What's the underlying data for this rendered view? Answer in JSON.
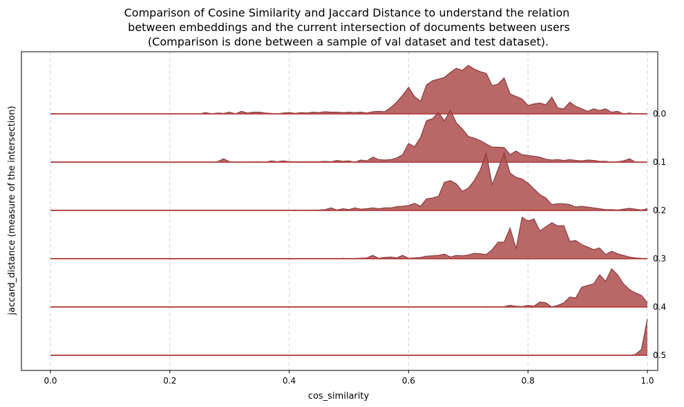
{
  "chart_data": {
    "type": "area",
    "title_lines": [
      "Comparison of Cosine Similarity and Jaccard Distance to understand the relation",
      "between embeddings and the current intersection of documents between users",
      "(Comparison is done between a sample of val dataset and test dataset)."
    ],
    "xlabel": "cos_similarity",
    "ylabel": "jaccard_distance (measure of the intersection)",
    "xlim": [
      0.0,
      1.0
    ],
    "x_ticks": [
      0.0,
      0.2,
      0.4,
      0.6,
      0.8,
      1.0
    ],
    "x_tick_labels": [
      "0.0",
      "0.2",
      "0.4",
      "0.6",
      "0.8",
      "1.0"
    ],
    "grid": "vertical dashed",
    "fill_color": "#b05252",
    "line_color": "#8b3a3a",
    "baseline_color": "#b84a4a",
    "series": [
      {
        "label": "0.0",
        "points": [
          [
            0.0,
            0
          ],
          [
            0.25,
            0
          ],
          [
            0.26,
            0.03
          ],
          [
            0.27,
            0
          ],
          [
            0.28,
            0.02
          ],
          [
            0.29,
            0.01
          ],
          [
            0.3,
            0.04
          ],
          [
            0.31,
            0
          ],
          [
            0.32,
            0.06
          ],
          [
            0.33,
            0.02
          ],
          [
            0.34,
            0.04
          ],
          [
            0.35,
            0.04
          ],
          [
            0.36,
            0.02
          ],
          [
            0.37,
            0.01
          ],
          [
            0.38,
            0
          ],
          [
            0.39,
            0.02
          ],
          [
            0.4,
            0.03
          ],
          [
            0.41,
            0.01
          ],
          [
            0.42,
            0.03
          ],
          [
            0.43,
            0.02
          ],
          [
            0.44,
            0.04
          ],
          [
            0.45,
            0.03
          ],
          [
            0.46,
            0.05
          ],
          [
            0.47,
            0.04
          ],
          [
            0.48,
            0.04
          ],
          [
            0.49,
            0.03
          ],
          [
            0.5,
            0.04
          ],
          [
            0.51,
            0.03
          ],
          [
            0.52,
            0.04
          ],
          [
            0.53,
            0.02
          ],
          [
            0.54,
            0.05
          ],
          [
            0.55,
            0.06
          ],
          [
            0.56,
            0.05
          ],
          [
            0.57,
            0.15
          ],
          [
            0.58,
            0.28
          ],
          [
            0.59,
            0.45
          ],
          [
            0.6,
            0.64
          ],
          [
            0.61,
            0.42
          ],
          [
            0.62,
            0.3
          ],
          [
            0.63,
            0.7
          ],
          [
            0.64,
            0.8
          ],
          [
            0.65,
            0.84
          ],
          [
            0.66,
            0.88
          ],
          [
            0.67,
            1.0
          ],
          [
            0.68,
            1.1
          ],
          [
            0.69,
            1.05
          ],
          [
            0.7,
            1.17
          ],
          [
            0.71,
            1.08
          ],
          [
            0.72,
            1.02
          ],
          [
            0.73,
            0.98
          ],
          [
            0.74,
            0.68
          ],
          [
            0.75,
            0.72
          ],
          [
            0.76,
            0.87
          ],
          [
            0.77,
            0.48
          ],
          [
            0.78,
            0.42
          ],
          [
            0.79,
            0.36
          ],
          [
            0.8,
            0.2
          ],
          [
            0.81,
            0.24
          ],
          [
            0.82,
            0.26
          ],
          [
            0.83,
            0.22
          ],
          [
            0.84,
            0.4
          ],
          [
            0.85,
            0.14
          ],
          [
            0.86,
            0.12
          ],
          [
            0.87,
            0.28
          ],
          [
            0.88,
            0.18
          ],
          [
            0.89,
            0.12
          ],
          [
            0.9,
            0.06
          ],
          [
            0.91,
            0.12
          ],
          [
            0.92,
            0.08
          ],
          [
            0.93,
            0.12
          ],
          [
            0.94,
            0.04
          ],
          [
            0.95,
            0.06
          ],
          [
            0.96,
            0.0
          ],
          [
            0.97,
            0.02
          ],
          [
            0.98,
            0.0
          ],
          [
            1.0,
            0
          ]
        ]
      },
      {
        "label": "0.1",
        "points": [
          [
            0.0,
            0
          ],
          [
            0.27,
            0
          ],
          [
            0.28,
            0.01
          ],
          [
            0.29,
            0.08
          ],
          [
            0.3,
            0.01
          ],
          [
            0.31,
            0
          ],
          [
            0.35,
            0.01
          ],
          [
            0.36,
            0
          ],
          [
            0.37,
            0.03
          ],
          [
            0.38,
            0.01
          ],
          [
            0.39,
            0.03
          ],
          [
            0.4,
            0.01
          ],
          [
            0.45,
            0.01
          ],
          [
            0.46,
            0.02
          ],
          [
            0.47,
            0.01
          ],
          [
            0.48,
            0.04
          ],
          [
            0.49,
            0.02
          ],
          [
            0.5,
            0.03
          ],
          [
            0.51,
            0
          ],
          [
            0.52,
            0.05
          ],
          [
            0.53,
            0.03
          ],
          [
            0.54,
            0.12
          ],
          [
            0.55,
            0.06
          ],
          [
            0.56,
            0.05
          ],
          [
            0.57,
            0.06
          ],
          [
            0.58,
            0.1
          ],
          [
            0.59,
            0.18
          ],
          [
            0.6,
            0.45
          ],
          [
            0.61,
            0.37
          ],
          [
            0.62,
            0.6
          ],
          [
            0.63,
            1.0
          ],
          [
            0.64,
            1.05
          ],
          [
            0.65,
            1.2
          ],
          [
            0.66,
            1.0
          ],
          [
            0.67,
            1.25
          ],
          [
            0.68,
            0.95
          ],
          [
            0.69,
            0.8
          ],
          [
            0.7,
            0.62
          ],
          [
            0.71,
            0.58
          ],
          [
            0.72,
            0.52
          ],
          [
            0.73,
            0.44
          ],
          [
            0.74,
            0.36
          ],
          [
            0.75,
            0.36
          ],
          [
            0.76,
            0.35
          ],
          [
            0.77,
            0.18
          ],
          [
            0.78,
            0.27
          ],
          [
            0.79,
            0.18
          ],
          [
            0.8,
            0.16
          ],
          [
            0.81,
            0.14
          ],
          [
            0.82,
            0.12
          ],
          [
            0.83,
            0.07
          ],
          [
            0.84,
            0.05
          ],
          [
            0.85,
            0.06
          ],
          [
            0.86,
            0.04
          ],
          [
            0.87,
            0.06
          ],
          [
            0.88,
            0.04
          ],
          [
            0.89,
            0.03
          ],
          [
            0.9,
            0.05
          ],
          [
            0.91,
            0.04
          ],
          [
            0.92,
            0.02
          ],
          [
            0.93,
            0.02
          ],
          [
            0.94,
            0.0
          ],
          [
            0.95,
            0.01
          ],
          [
            0.96,
            0.03
          ],
          [
            0.97,
            0.08
          ],
          [
            0.98,
            0
          ],
          [
            1.0,
            0
          ]
        ]
      },
      {
        "label": "0.2",
        "points": [
          [
            0.0,
            0
          ],
          [
            0.4,
            0
          ],
          [
            0.41,
            0.01
          ],
          [
            0.42,
            0
          ],
          [
            0.45,
            0.01
          ],
          [
            0.46,
            0.02
          ],
          [
            0.47,
            0.06
          ],
          [
            0.48,
            0.01
          ],
          [
            0.49,
            0.04
          ],
          [
            0.5,
            0.02
          ],
          [
            0.51,
            0.06
          ],
          [
            0.52,
            0.03
          ],
          [
            0.53,
            0.04
          ],
          [
            0.54,
            0.06
          ],
          [
            0.55,
            0.04
          ],
          [
            0.56,
            0.06
          ],
          [
            0.57,
            0.06
          ],
          [
            0.58,
            0.09
          ],
          [
            0.59,
            0.1
          ],
          [
            0.6,
            0.12
          ],
          [
            0.61,
            0.17
          ],
          [
            0.62,
            0.1
          ],
          [
            0.63,
            0.28
          ],
          [
            0.64,
            0.3
          ],
          [
            0.65,
            0.34
          ],
          [
            0.66,
            0.68
          ],
          [
            0.67,
            0.72
          ],
          [
            0.68,
            0.64
          ],
          [
            0.69,
            0.46
          ],
          [
            0.7,
            0.54
          ],
          [
            0.71,
            0.72
          ],
          [
            0.72,
            0.98
          ],
          [
            0.73,
            1.38
          ],
          [
            0.74,
            0.62
          ],
          [
            0.75,
            1.0
          ],
          [
            0.76,
            1.38
          ],
          [
            0.77,
            0.9
          ],
          [
            0.78,
            0.8
          ],
          [
            0.79,
            0.76
          ],
          [
            0.8,
            0.66
          ],
          [
            0.81,
            0.52
          ],
          [
            0.82,
            0.38
          ],
          [
            0.83,
            0.3
          ],
          [
            0.84,
            0.14
          ],
          [
            0.85,
            0.16
          ],
          [
            0.86,
            0.16
          ],
          [
            0.87,
            0.14
          ],
          [
            0.88,
            0.08
          ],
          [
            0.89,
            0.1
          ],
          [
            0.9,
            0.08
          ],
          [
            0.91,
            0.06
          ],
          [
            0.92,
            0.04
          ],
          [
            0.93,
            0.02
          ],
          [
            0.94,
            0.02
          ],
          [
            0.95,
            0.01
          ],
          [
            0.96,
            0.03
          ],
          [
            0.97,
            0.05
          ],
          [
            0.98,
            0.03
          ],
          [
            0.99,
            0.01
          ],
          [
            1.0,
            0.04
          ]
        ]
      },
      {
        "label": "0.3",
        "points": [
          [
            0.0,
            0
          ],
          [
            0.48,
            0
          ],
          [
            0.49,
            0.01
          ],
          [
            0.5,
            0
          ],
          [
            0.53,
            0.02
          ],
          [
            0.54,
            0.08
          ],
          [
            0.55,
            0.01
          ],
          [
            0.56,
            0.03
          ],
          [
            0.57,
            0.04
          ],
          [
            0.58,
            0.02
          ],
          [
            0.59,
            0.08
          ],
          [
            0.6,
            0.01
          ],
          [
            0.61,
            0.02
          ],
          [
            0.62,
            0.03
          ],
          [
            0.63,
            0.06
          ],
          [
            0.64,
            0.07
          ],
          [
            0.65,
            0.08
          ],
          [
            0.66,
            0.11
          ],
          [
            0.67,
            0.04
          ],
          [
            0.68,
            0.08
          ],
          [
            0.69,
            0.07
          ],
          [
            0.7,
            0.09
          ],
          [
            0.71,
            0.13
          ],
          [
            0.72,
            0.12
          ],
          [
            0.73,
            0.1
          ],
          [
            0.74,
            0.22
          ],
          [
            0.75,
            0.4
          ],
          [
            0.76,
            0.4
          ],
          [
            0.77,
            0.74
          ],
          [
            0.78,
            0.24
          ],
          [
            0.79,
            1.0
          ],
          [
            0.8,
            0.91
          ],
          [
            0.81,
            0.96
          ],
          [
            0.82,
            0.67
          ],
          [
            0.83,
            0.77
          ],
          [
            0.84,
            0.87
          ],
          [
            0.85,
            0.79
          ],
          [
            0.86,
            0.8
          ],
          [
            0.87,
            0.42
          ],
          [
            0.88,
            0.44
          ],
          [
            0.89,
            0.34
          ],
          [
            0.9,
            0.28
          ],
          [
            0.91,
            0.22
          ],
          [
            0.92,
            0.26
          ],
          [
            0.93,
            0.1
          ],
          [
            0.94,
            0.18
          ],
          [
            0.95,
            0.12
          ],
          [
            0.96,
            0.08
          ],
          [
            0.97,
            0.04
          ],
          [
            0.98,
            0.02
          ],
          [
            1.0,
            0
          ]
        ]
      },
      {
        "label": "0.4",
        "points": [
          [
            0.0,
            0
          ],
          [
            0.72,
            0
          ],
          [
            0.73,
            0.01
          ],
          [
            0.74,
            0
          ],
          [
            0.76,
            0.01
          ],
          [
            0.77,
            0.04
          ],
          [
            0.78,
            0.02
          ],
          [
            0.79,
            0.01
          ],
          [
            0.8,
            0.04
          ],
          [
            0.81,
            0.02
          ],
          [
            0.82,
            0.12
          ],
          [
            0.83,
            0.1
          ],
          [
            0.84,
            0.0
          ],
          [
            0.85,
            0.04
          ],
          [
            0.86,
            0.1
          ],
          [
            0.87,
            0.24
          ],
          [
            0.88,
            0.22
          ],
          [
            0.89,
            0.48
          ],
          [
            0.9,
            0.52
          ],
          [
            0.91,
            0.56
          ],
          [
            0.92,
            0.78
          ],
          [
            0.93,
            0.62
          ],
          [
            0.94,
            0.92
          ],
          [
            0.95,
            0.78
          ],
          [
            0.96,
            0.56
          ],
          [
            0.97,
            0.42
          ],
          [
            0.98,
            0.34
          ],
          [
            0.99,
            0.28
          ],
          [
            1.0,
            0.1
          ]
        ]
      },
      {
        "label": "0.5",
        "points": [
          [
            0.0,
            0
          ],
          [
            0.97,
            0
          ],
          [
            0.98,
            0.02
          ],
          [
            0.99,
            0.14
          ],
          [
            1.0,
            0.88
          ]
        ]
      }
    ]
  }
}
